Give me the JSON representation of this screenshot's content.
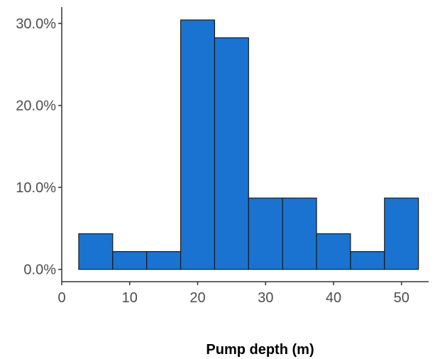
{
  "chart_data": {
    "type": "bar",
    "subtype": "histogram",
    "title": "",
    "xlabel": "Pump depth (m)",
    "ylabel": "",
    "bin_width": 5,
    "bins": [
      {
        "start": 2.5,
        "end": 7.5,
        "value": 4.35
      },
      {
        "start": 7.5,
        "end": 12.5,
        "value": 2.17
      },
      {
        "start": 12.5,
        "end": 17.5,
        "value": 2.17
      },
      {
        "start": 17.5,
        "end": 22.5,
        "value": 30.43
      },
      {
        "start": 22.5,
        "end": 27.5,
        "value": 28.26
      },
      {
        "start": 27.5,
        "end": 32.5,
        "value": 8.7
      },
      {
        "start": 32.5,
        "end": 37.5,
        "value": 8.7
      },
      {
        "start": 37.5,
        "end": 42.5,
        "value": 4.35
      },
      {
        "start": 42.5,
        "end": 47.5,
        "value": 2.17
      },
      {
        "start": 47.5,
        "end": 52.5,
        "value": 8.7
      }
    ],
    "x_ticks": [
      {
        "value": 0,
        "label": "0"
      },
      {
        "value": 10,
        "label": "10"
      },
      {
        "value": 20,
        "label": "20"
      },
      {
        "value": 30,
        "label": "30"
      },
      {
        "value": 40,
        "label": "40"
      },
      {
        "value": 50,
        "label": "50"
      }
    ],
    "y_ticks": [
      {
        "value": 0,
        "label": "0.0%"
      },
      {
        "value": 10,
        "label": "10.0%"
      },
      {
        "value": 20,
        "label": "20.0%"
      },
      {
        "value": 30,
        "label": "30.0%"
      }
    ],
    "xlim": [
      0,
      54
    ],
    "ylim": [
      -1.5,
      32
    ],
    "grid": false,
    "legend": "none",
    "colors": {
      "bar_fill": "#1a73d0",
      "bar_stroke": "#1a1a1a",
      "axis": "#333333",
      "tick_label": "#4d4d4d"
    }
  }
}
